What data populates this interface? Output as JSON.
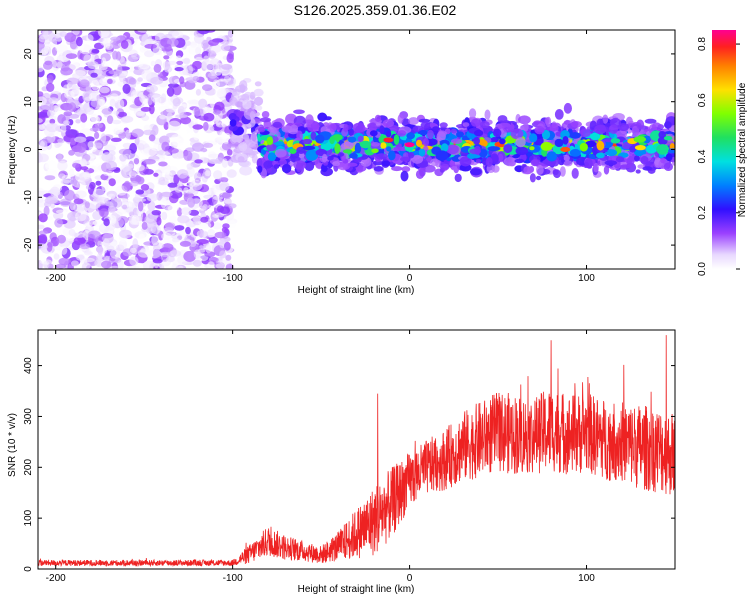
{
  "title": "S126.2025.359.01.36.E02",
  "chart_data": [
    {
      "type": "heatmap",
      "name": "spectrogram",
      "xlabel": "Height of straight line (km)",
      "ylabel": "Frequency (Hz)",
      "xlim": [
        -210,
        150
      ],
      "ylim": [
        -25,
        25
      ],
      "xticks": [
        -200,
        -100,
        0,
        100
      ],
      "xtick_labels": [
        "-200",
        "-100",
        "0",
        "100"
      ],
      "yticks": [
        -20,
        -10,
        0,
        10,
        20
      ],
      "ytick_labels": [
        "-20",
        "-10",
        "0",
        "10",
        "20"
      ],
      "colorbar": {
        "label": "Normalized spectral amplitude",
        "range": [
          0,
          0.85
        ],
        "ticks": [
          0.0,
          0.2,
          0.4,
          0.6,
          0.8
        ],
        "tick_labels": [
          "0.0",
          "0.2",
          "0.4",
          "0.6",
          "0.8"
        ]
      },
      "regions": [
        {
          "x_range": [
            -210,
            -100
          ],
          "freq_spread": [
            -25,
            25
          ],
          "amplitude": [
            0.0,
            0.15
          ],
          "description": "broadband noise"
        },
        {
          "x_range": [
            -100,
            -85
          ],
          "freq_center": 5,
          "freq_width": 8,
          "amplitude": [
            0.05,
            0.25
          ]
        },
        {
          "x_range": [
            -85,
            150
          ],
          "freq_center": 1,
          "freq_width": 5,
          "amplitude": [
            0.1,
            0.8
          ]
        }
      ],
      "peaks": [
        {
          "x": -12,
          "freq": 2,
          "amplitude": 0.8
        },
        {
          "x": 0,
          "freq": 1,
          "amplitude": 0.85
        },
        {
          "x": 88,
          "freq": 0,
          "amplitude": 0.75
        }
      ]
    },
    {
      "type": "line",
      "name": "snr",
      "xlabel": "Height of straight line (km)",
      "ylabel": "SNR (10 * v/v)",
      "xlim": [
        -210,
        150
      ],
      "ylim": [
        0,
        470
      ],
      "xticks": [
        -200,
        -100,
        0,
        100
      ],
      "xtick_labels": [
        "-200",
        "-100",
        "0",
        "100"
      ],
      "yticks": [
        0,
        100,
        200,
        300,
        400
      ],
      "ytick_labels": [
        "0",
        "100",
        "200",
        "300",
        "400"
      ],
      "series": [
        {
          "name": "SNR",
          "color": "#ee2222",
          "envelope_x": [
            -210,
            -100,
            -90,
            -80,
            -70,
            -60,
            -50,
            -40,
            -30,
            -20,
            -10,
            0,
            10,
            20,
            30,
            40,
            50,
            60,
            70,
            80,
            90,
            100,
            110,
            120,
            130,
            140,
            150
          ],
          "envelope_mean": [
            12,
            12,
            30,
            55,
            42,
            35,
            28,
            45,
            70,
            95,
            130,
            175,
            200,
            215,
            240,
            255,
            270,
            265,
            262,
            275,
            265,
            268,
            255,
            250,
            240,
            235,
            225
          ],
          "envelope_spread": [
            6,
            6,
            20,
            30,
            25,
            20,
            18,
            30,
            50,
            70,
            70,
            55,
            55,
            60,
            70,
            75,
            80,
            80,
            75,
            85,
            80,
            80,
            80,
            80,
            85,
            85,
            85
          ],
          "peak_values": [
            {
              "x": -18,
              "y": 345
            },
            {
              "x": 80,
              "y": 450
            },
            {
              "x": 145,
              "y": 460
            }
          ]
        }
      ]
    }
  ]
}
